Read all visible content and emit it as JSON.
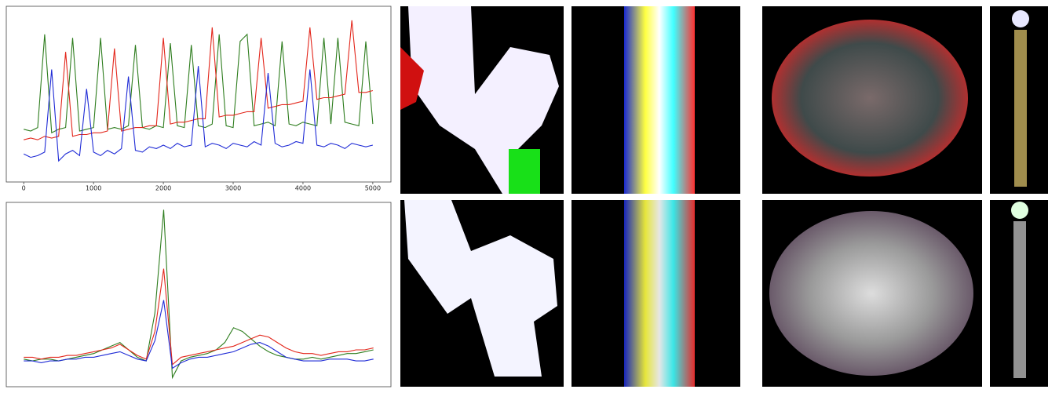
{
  "chart_data": [
    {
      "type": "line",
      "x": [
        0,
        100,
        200,
        300,
        400,
        500,
        600,
        700,
        800,
        900,
        1000,
        1100,
        1200,
        1300,
        1400,
        1500,
        1600,
        1700,
        1800,
        1900,
        2000,
        2100,
        2200,
        2300,
        2400,
        2500,
        2600,
        2700,
        2800,
        2900,
        3000,
        3100,
        3200,
        3300,
        3400,
        3500,
        3600,
        3700,
        3800,
        3900,
        4000,
        4100,
        4200,
        4300,
        4400,
        4500,
        4600,
        4700,
        4800,
        4900,
        5000
      ],
      "xlim": [
        -250,
        5260
      ],
      "ylim": [
        0,
        100
      ],
      "xticks": [
        0,
        1000,
        2000,
        3000,
        4000,
        5000
      ],
      "series": [
        {
          "color": "#2e7d1e",
          "values": [
            30,
            29,
            31,
            84,
            28,
            30,
            31,
            82,
            29,
            30,
            31,
            82,
            30,
            31,
            30,
            32,
            78,
            31,
            30,
            32,
            31,
            79,
            32,
            31,
            78,
            32,
            31,
            33,
            84,
            32,
            31,
            80,
            84,
            32,
            33,
            34,
            32,
            80,
            33,
            32,
            34,
            33,
            32,
            82,
            33,
            82,
            34,
            33,
            32,
            80,
            33
          ]
        },
        {
          "color": "#e3261b",
          "values": [
            24,
            25,
            24,
            26,
            25,
            26,
            74,
            26,
            27,
            27,
            28,
            28,
            29,
            76,
            29,
            30,
            31,
            31,
            32,
            32,
            82,
            33,
            34,
            34,
            35,
            36,
            36,
            88,
            37,
            38,
            38,
            39,
            40,
            40,
            82,
            42,
            43,
            44,
            44,
            45,
            46,
            88,
            47,
            48,
            48,
            49,
            50,
            92,
            51,
            51,
            52
          ]
        },
        {
          "color": "#1f2bd6",
          "values": [
            16,
            14,
            15,
            17,
            64,
            12,
            16,
            18,
            15,
            53,
            17,
            15,
            18,
            16,
            19,
            60,
            18,
            17,
            20,
            19,
            21,
            19,
            22,
            20,
            21,
            66,
            20,
            22,
            21,
            19,
            22,
            21,
            20,
            23,
            21,
            62,
            22,
            20,
            21,
            23,
            22,
            64,
            21,
            20,
            22,
            21,
            19,
            22,
            21,
            20,
            21
          ]
        }
      ]
    },
    {
      "type": "line",
      "x": [
        0,
        10,
        20,
        30,
        40,
        50,
        60,
        70,
        80,
        90,
        100,
        110,
        120,
        130,
        140,
        150,
        160,
        170,
        180,
        190,
        200,
        210,
        220,
        230,
        240,
        250,
        260,
        270,
        280,
        290,
        300,
        310,
        320,
        330,
        340,
        350,
        360,
        370,
        380,
        390,
        400
      ],
      "xlim": [
        -20,
        420
      ],
      "ylim": [
        0,
        100
      ],
      "series": [
        {
          "color": "#2e7d1e",
          "values": [
            15,
            14,
            15,
            15,
            14,
            15,
            16,
            17,
            18,
            20,
            22,
            24,
            20,
            16,
            14,
            40,
            96,
            5,
            14,
            16,
            17,
            18,
            20,
            24,
            32,
            30,
            26,
            22,
            19,
            17,
            16,
            15,
            15,
            16,
            15,
            16,
            17,
            18,
            18,
            19,
            20
          ]
        },
        {
          "color": "#e3261b",
          "values": [
            16,
            16,
            15,
            16,
            16,
            17,
            17,
            18,
            19,
            20,
            21,
            23,
            20,
            17,
            15,
            30,
            64,
            12,
            16,
            17,
            18,
            19,
            20,
            21,
            22,
            24,
            26,
            28,
            27,
            24,
            21,
            19,
            18,
            18,
            17,
            18,
            19,
            19,
            20,
            20,
            21
          ]
        },
        {
          "color": "#1f2bd6",
          "values": [
            14,
            14,
            13,
            14,
            14,
            15,
            15,
            16,
            16,
            17,
            18,
            19,
            17,
            15,
            14,
            25,
            47,
            10,
            13,
            15,
            16,
            16,
            17,
            18,
            19,
            21,
            23,
            24,
            22,
            19,
            16,
            15,
            14,
            14,
            14,
            15,
            15,
            15,
            14,
            14,
            15
          ]
        }
      ]
    }
  ]
}
